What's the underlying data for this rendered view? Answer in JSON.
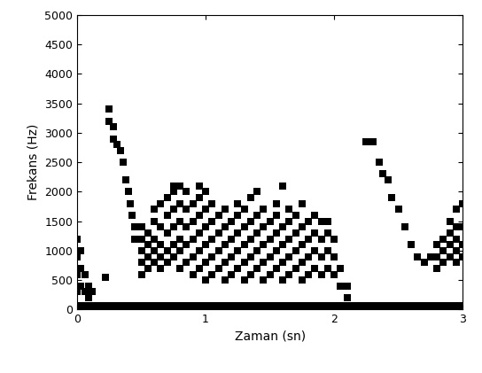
{
  "chart_data": {
    "type": "scatter",
    "x_label": "Zaman (sn)",
    "y_label": "Frekans (Hz)",
    "color": "#000000",
    "marker": "square",
    "grid": false,
    "xlim": [
      0,
      3
    ],
    "ylim": [
      0,
      5000
    ],
    "xticks": [
      0,
      1,
      2,
      3
    ],
    "yticks": [
      0,
      500,
      1000,
      1500,
      2000,
      2500,
      3000,
      3500,
      4000,
      4500,
      5000
    ],
    "x": [
      0,
      0.05,
      0.1,
      0.15,
      0.2,
      0.25,
      0.3,
      0.35,
      0.4,
      0.45,
      0.5,
      0.55,
      0.6,
      0.65,
      0.7,
      0.75,
      0.8,
      0.85,
      0.9,
      0.95,
      1.0,
      1.05,
      1.1,
      1.15,
      1.2,
      1.25,
      1.3,
      1.35,
      1.4,
      1.45,
      1.5,
      1.55,
      1.6,
      1.65,
      1.7,
      1.75,
      1.8,
      1.85,
      1.9,
      1.95,
      2.0,
      2.05,
      2.1,
      2.15,
      2.2,
      2.25,
      2.3,
      2.35,
      2.4,
      2.45,
      2.5,
      2.55,
      2.6,
      2.65,
      2.7,
      2.75,
      2.8,
      2.85,
      2.9,
      2.95,
      3.0,
      0,
      0,
      0,
      0,
      0.03,
      0.03,
      0.03,
      0.06,
      0.06,
      0.09,
      0.09,
      0.12,
      0.22,
      0.25,
      0.25,
      0.28,
      0.28,
      0.31,
      0.34,
      0.36,
      0.38,
      0.4,
      0.41,
      0.43,
      0.45,
      0.45,
      0.5,
      0.5,
      0.5,
      0.5,
      0.5,
      0.55,
      0.55,
      0.55,
      0.55,
      0.6,
      0.6,
      0.6,
      0.6,
      0.6,
      0.65,
      0.65,
      0.65,
      0.65,
      0.65,
      0.7,
      0.7,
      0.7,
      0.7,
      0.7,
      0.75,
      0.75,
      0.75,
      0.75,
      0.75,
      0.75,
      0.8,
      0.8,
      0.8,
      0.8,
      0.8,
      0.8,
      0.85,
      0.85,
      0.85,
      0.85,
      0.85,
      0.9,
      0.9,
      0.9,
      0.9,
      0.9,
      0.95,
      0.95,
      0.95,
      0.95,
      0.95,
      0.95,
      1.0,
      1.0,
      1.0,
      1.0,
      1.0,
      1.0,
      1.05,
      1.05,
      1.05,
      1.05,
      1.05,
      1.1,
      1.1,
      1.1,
      1.1,
      1.15,
      1.15,
      1.15,
      1.15,
      1.15,
      1.2,
      1.2,
      1.2,
      1.2,
      1.25,
      1.25,
      1.25,
      1.25,
      1.25,
      1.3,
      1.3,
      1.3,
      1.3,
      1.3,
      1.35,
      1.35,
      1.35,
      1.35,
      1.35,
      1.4,
      1.4,
      1.4,
      1.4,
      1.4,
      1.45,
      1.45,
      1.45,
      1.45,
      1.45,
      1.5,
      1.5,
      1.5,
      1.5,
      1.55,
      1.55,
      1.55,
      1.55,
      1.55,
      1.6,
      1.6,
      1.6,
      1.6,
      1.6,
      1.65,
      1.65,
      1.65,
      1.65,
      1.65,
      1.7,
      1.7,
      1.7,
      1.7,
      1.75,
      1.75,
      1.75,
      1.75,
      1.75,
      1.8,
      1.8,
      1.8,
      1.8,
      1.85,
      1.85,
      1.85,
      1.85,
      1.9,
      1.9,
      1.9,
      1.9,
      1.95,
      1.95,
      1.95,
      1.95,
      2.0,
      2.0,
      2.0,
      2.05,
      2.05,
      2.1,
      2.1,
      2.25,
      2.3,
      2.35,
      2.38,
      2.42,
      2.45,
      2.5,
      2.55,
      2.6,
      2.65,
      2.7,
      2.75,
      2.8,
      2.8,
      2.8,
      2.85,
      2.85,
      2.85,
      2.9,
      2.9,
      2.9,
      2.9,
      2.95,
      2.95,
      2.95,
      2.95,
      2.95,
      3.0,
      3.0,
      3.0,
      3.0
    ],
    "values": [
      60,
      60,
      60,
      60,
      60,
      60,
      60,
      60,
      60,
      60,
      60,
      60,
      60,
      60,
      60,
      60,
      60,
      60,
      60,
      60,
      60,
      60,
      60,
      60,
      60,
      60,
      60,
      60,
      60,
      60,
      60,
      60,
      60,
      60,
      60,
      60,
      60,
      60,
      60,
      60,
      60,
      60,
      60,
      60,
      60,
      60,
      60,
      60,
      60,
      60,
      60,
      60,
      60,
      60,
      60,
      60,
      60,
      60,
      60,
      60,
      60,
      1200,
      900,
      600,
      300,
      1000,
      700,
      400,
      600,
      300,
      400,
      200,
      300,
      550,
      3400,
      3200,
      3100,
      2900,
      2800,
      2700,
      2500,
      2200,
      2000,
      1800,
      1600,
      1400,
      1200,
      600,
      800,
      1000,
      1200,
      1400,
      700,
      900,
      1100,
      1300,
      800,
      1000,
      1200,
      1500,
      1700,
      700,
      900,
      1100,
      1400,
      1800,
      800,
      1000,
      1300,
      1600,
      1900,
      900,
      1100,
      1400,
      1700,
      2000,
      2100,
      700,
      1000,
      1200,
      1500,
      1800,
      2100,
      800,
      1100,
      1400,
      1700,
      2000,
      600,
      900,
      1200,
      1500,
      1800,
      700,
      1000,
      1300,
      1600,
      1900,
      2100,
      500,
      800,
      1100,
      1400,
      1700,
      2000,
      600,
      900,
      1200,
      1500,
      1800,
      700,
      1000,
      1300,
      1600,
      500,
      800,
      1100,
      1400,
      1700,
      600,
      900,
      1200,
      1500,
      700,
      1000,
      1300,
      1600,
      1800,
      500,
      800,
      1100,
      1400,
      1700,
      600,
      900,
      1200,
      1500,
      1900,
      700,
      1000,
      1300,
      1600,
      2000,
      500,
      800,
      1100,
      1400,
      1700,
      600,
      900,
      1200,
      1500,
      700,
      1000,
      1300,
      1600,
      1800,
      500,
      800,
      1100,
      1400,
      2100,
      600,
      900,
      1200,
      1500,
      1700,
      700,
      1000,
      1300,
      1600,
      500,
      800,
      1100,
      1400,
      1800,
      600,
      900,
      1200,
      1500,
      700,
      1000,
      1300,
      1600,
      600,
      900,
      1200,
      1500,
      700,
      1000,
      1300,
      1500,
      600,
      900,
      1200,
      400,
      700,
      200,
      400,
      2850,
      2850,
      2500,
      2300,
      2200,
      1900,
      1700,
      1400,
      1100,
      900,
      800,
      900,
      700,
      900,
      1100,
      800,
      1000,
      1200,
      900,
      1100,
      1300,
      1500,
      800,
      1000,
      1200,
      1400,
      1700,
      900,
      1100,
      1400,
      1800
    ]
  }
}
